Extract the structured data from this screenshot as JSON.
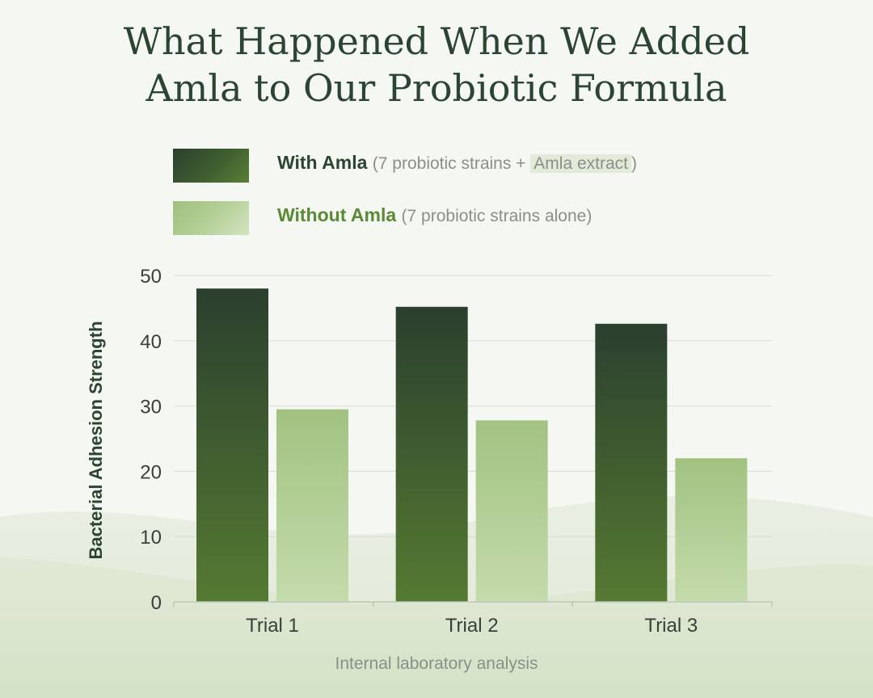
{
  "title_line1": "What Happened When We Added",
  "title_line2": "Amla to Our Probiotic Formula",
  "legend": {
    "with_name": "With Amla",
    "with_note_open": "(7 probiotic strains + ",
    "with_note_highlight": "Amla extract",
    "with_note_close": ")",
    "without_name": "Without Amla",
    "without_note": "(7 probiotic strains alone)"
  },
  "footer": "Internal laboratory analysis",
  "colors": {
    "title": "#2c4432",
    "with_dark": "#2b3f2e",
    "with_light": "#5a7f35",
    "without_dark": "#9fc07e",
    "without_light": "#d3e4c1",
    "grid": "#d8dcd4"
  },
  "chart_data": {
    "type": "bar",
    "categories": [
      "Trial 1",
      "Trial 2",
      "Trial 3"
    ],
    "series": [
      {
        "name": "With Amla",
        "values": [
          48,
          45.2,
          42.6
        ]
      },
      {
        "name": "Without Amla",
        "values": [
          29.5,
          27.8,
          22
        ]
      }
    ],
    "ylabel": "Bacterial Adhesion Strength",
    "xlabel": "",
    "ylim": [
      0,
      50
    ],
    "yticks": [
      "0",
      "10",
      "20",
      "30",
      "40",
      "50"
    ],
    "grid": true,
    "legend_position": "top"
  }
}
